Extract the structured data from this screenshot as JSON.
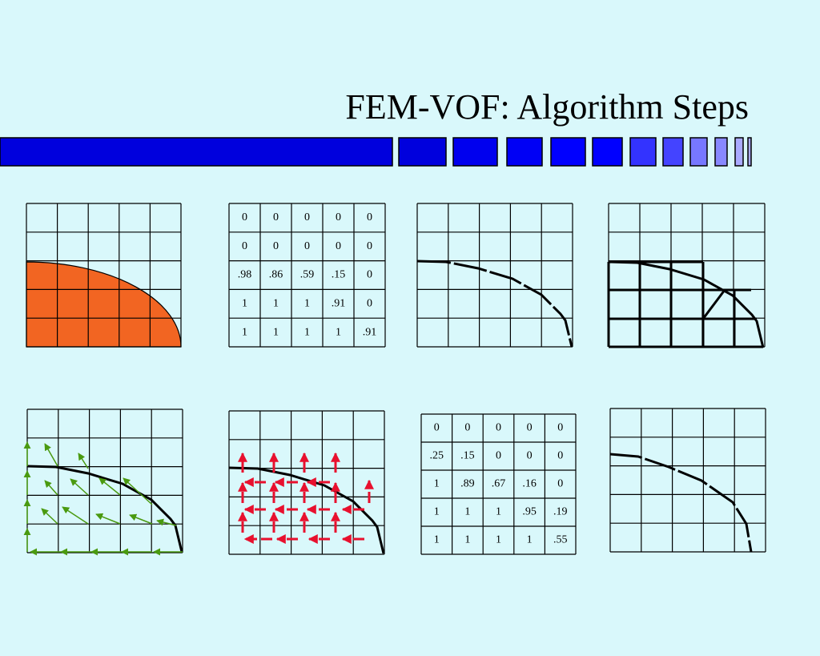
{
  "title": "FEM-VOF: Algorithm Steps",
  "tables": [
    {
      "rows": [
        [
          "0",
          "0",
          "0",
          "0",
          "0"
        ],
        [
          "0",
          "0",
          "0",
          "0",
          "0"
        ],
        [
          ".98",
          ".86",
          ".59",
          ".15",
          "0"
        ],
        [
          "1",
          "1",
          "1",
          ".91",
          "0"
        ],
        [
          "1",
          "1",
          "1",
          "1",
          ".91"
        ]
      ]
    },
    {
      "rows": [
        [
          "0",
          "0",
          "0",
          "0",
          "0"
        ],
        [
          ".25",
          ".15",
          "0",
          "0",
          "0"
        ],
        [
          "1",
          ".89",
          ".67",
          ".16",
          "0"
        ],
        [
          "1",
          "1",
          "1",
          ".95",
          ".19"
        ],
        [
          "1",
          "1",
          "1",
          "1",
          ".55"
        ]
      ]
    }
  ]
}
